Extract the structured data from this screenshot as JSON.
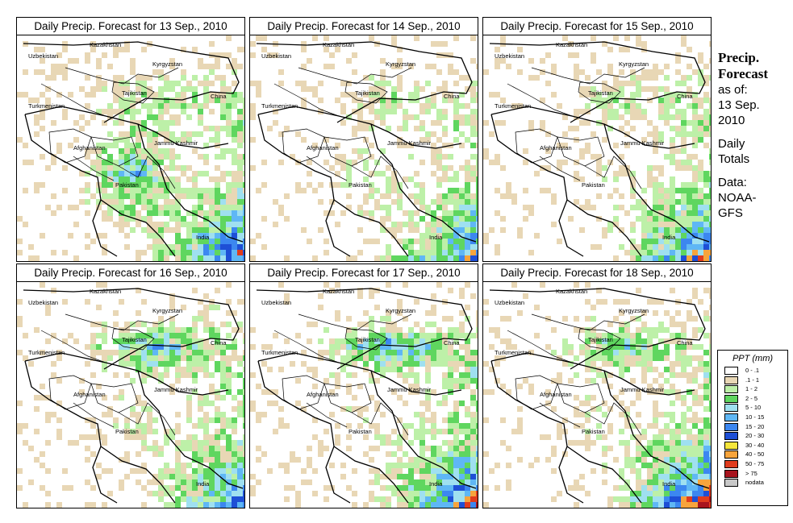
{
  "panels": [
    {
      "title": "Daily Precip. Forecast for  13 Sep., 2010"
    },
    {
      "title": "Daily Precip. Forecast for  14 Sep., 2010"
    },
    {
      "title": "Daily Precip. Forecast for  15 Sep., 2010"
    },
    {
      "title": "Daily Precip. Forecast for  16 Sep., 2010"
    },
    {
      "title": "Daily Precip. Forecast for  17 Sep., 2010"
    },
    {
      "title": "Daily Precip. Forecast for  18 Sep., 2010"
    }
  ],
  "map_labels": {
    "uzbekistan": "Uzbekistan",
    "kazakhstan": "Kazakhstan",
    "kyrgyzstan": "Kyrgyzstan",
    "tajikistan": "Tajikistan",
    "turkmenistan": "Turkmenistan",
    "china": "China",
    "afghanistan": "Afghanistan",
    "jammu_kashmir": "Jammu Kashmir",
    "pakistan": "Pakistan",
    "india": "India"
  },
  "side": {
    "title_line1": "Precip.",
    "title_line2": "Forecast",
    "asof_line1": "as of:",
    "asof_line2": "13 Sep.",
    "asof_line3": "2010",
    "totals_line1": "Daily",
    "totals_line2": "Totals",
    "source_line1": "Data:",
    "source_line2": "NOAA-",
    "source_line3": "GFS"
  },
  "legend": {
    "title": "PPT (mm)",
    "items": [
      {
        "label": "0 - .1",
        "color": "#ffffff"
      },
      {
        "label": ".1 - 1",
        "color": "#e8d7b5"
      },
      {
        "label": "1 - 2",
        "color": "#bdf0a8"
      },
      {
        "label": "2 - 5",
        "color": "#5fd65f"
      },
      {
        "label": "5 - 10",
        "color": "#9fe0f0"
      },
      {
        "label": "10 - 15",
        "color": "#5fb7f5"
      },
      {
        "label": "15 - 20",
        "color": "#3c87f0"
      },
      {
        "label": "20 - 30",
        "color": "#1e4fd6"
      },
      {
        "label": "30 - 40",
        "color": "#f6e63c"
      },
      {
        "label": "40 - 50",
        "color": "#f7a43c"
      },
      {
        "label": "50 - 75",
        "color": "#e03c1e"
      },
      {
        "label": "> 75",
        "color": "#a8141e"
      },
      {
        "label": "nodata",
        "color": "#c8c8c8"
      }
    ]
  },
  "precip_intensity": [
    {
      "sw": 0.7,
      "se": 0.85,
      "north": 0.4,
      "east": 0.4
    },
    {
      "sw": 0.2,
      "se": 0.75,
      "north": 0.3,
      "east": 0.3
    },
    {
      "sw": 0.1,
      "se": 0.85,
      "north": 0.3,
      "east": 0.35
    },
    {
      "sw": 0.2,
      "se": 0.7,
      "north": 0.75,
      "east": 0.4
    },
    {
      "sw": 0.1,
      "se": 0.9,
      "north": 0.8,
      "east": 0.45
    },
    {
      "sw": 0.1,
      "se": 1.0,
      "north": 0.6,
      "east": 0.4
    }
  ]
}
